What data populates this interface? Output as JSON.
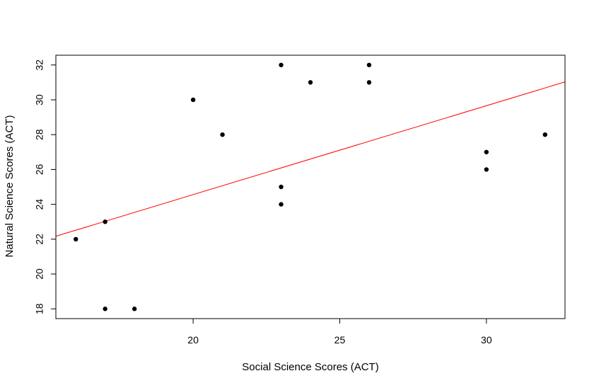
{
  "chart_data": {
    "type": "scatter",
    "title": "",
    "xlabel": "Social Science Scores (ACT)",
    "ylabel": "Natural Science Scores (ACT)",
    "xlim": [
      15.32,
      32.68
    ],
    "ylim": [
      17.44,
      32.56
    ],
    "xticks": [
      20,
      25,
      30
    ],
    "yticks": [
      18,
      20,
      22,
      24,
      26,
      28,
      30,
      32
    ],
    "grid": false,
    "legend": "none",
    "point_color": "#000000",
    "points": [
      {
        "x": 16,
        "y": 22
      },
      {
        "x": 17,
        "y": 23
      },
      {
        "x": 17,
        "y": 18
      },
      {
        "x": 18,
        "y": 18
      },
      {
        "x": 20,
        "y": 30
      },
      {
        "x": 21,
        "y": 28
      },
      {
        "x": 23,
        "y": 32
      },
      {
        "x": 23,
        "y": 25
      },
      {
        "x": 23,
        "y": 24
      },
      {
        "x": 24,
        "y": 31
      },
      {
        "x": 26,
        "y": 32
      },
      {
        "x": 26,
        "y": 31
      },
      {
        "x": 30,
        "y": 27
      },
      {
        "x": 30,
        "y": 26
      },
      {
        "x": 32,
        "y": 28
      }
    ],
    "regression_line": {
      "color": "#ff0000",
      "intercept": 14.35,
      "slope": 0.5104
    }
  }
}
